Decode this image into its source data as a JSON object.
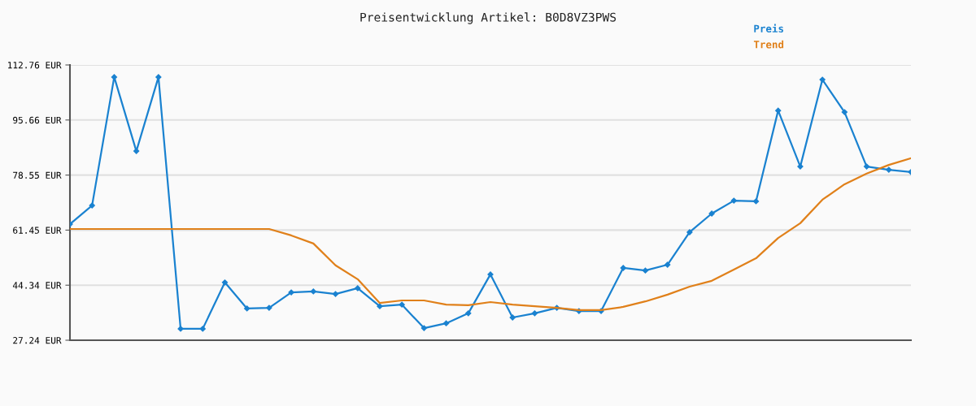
{
  "chart_data": {
    "type": "line",
    "title": "Preisentwicklung Artikel: B0D8VZ3PWS",
    "categories": [
      null,
      null,
      null,
      null,
      null,
      null,
      null,
      null,
      null,
      null,
      null,
      null,
      null,
      null,
      null,
      null,
      null,
      null,
      null,
      null,
      null,
      null,
      null,
      null,
      null,
      null,
      null,
      null,
      null,
      null,
      null,
      null,
      null,
      null,
      null,
      null,
      null,
      null,
      null
    ],
    "series": [
      {
        "name": "Preis",
        "color": "#1a82d0",
        "marker": "diamond",
        "values": [
          63.3,
          69.1,
          109.0,
          86.0,
          109.0,
          30.8,
          30.8,
          45.2,
          37.1,
          37.3,
          42.1,
          42.4,
          41.6,
          43.4,
          37.8,
          38.3,
          31.0,
          32.5,
          35.6,
          47.7,
          34.3,
          35.6,
          37.3,
          36.3,
          36.3,
          49.7,
          48.9,
          50.7,
          60.8,
          66.6,
          70.6,
          70.4,
          98.6,
          81.2,
          108.2,
          98.1,
          81.2,
          80.2,
          79.5
        ]
      },
      {
        "name": "Trend",
        "color": "#e0801a",
        "marker": "none",
        "values": [
          61.8,
          61.8,
          61.8,
          61.8,
          61.8,
          61.8,
          61.8,
          61.8,
          61.8,
          61.8,
          59.8,
          57.3,
          50.5,
          46.2,
          38.8,
          39.6,
          39.6,
          38.3,
          38.1,
          39.1,
          38.3,
          37.8,
          37.3,
          36.6,
          36.6,
          37.6,
          39.3,
          41.4,
          43.9,
          45.7,
          49.2,
          52.7,
          59.0,
          63.6,
          70.9,
          75.7,
          79.0,
          81.7,
          83.8
        ]
      }
    ],
    "ylim": [
      27.24,
      112.76
    ],
    "yticks": [
      {
        "value": 27.24,
        "label": "27.24 EUR"
      },
      {
        "value": 44.34,
        "label": "44.34 EUR"
      },
      {
        "value": 61.45,
        "label": "61.45 EUR"
      },
      {
        "value": 78.55,
        "label": "78.55 EUR"
      },
      {
        "value": 95.66,
        "label": "95.66 EUR"
      },
      {
        "value": 112.76,
        "label": "112.76 EUR"
      }
    ],
    "tick_labels": "y",
    "grid": "y",
    "legend": "top right",
    "line_style": "solid"
  }
}
